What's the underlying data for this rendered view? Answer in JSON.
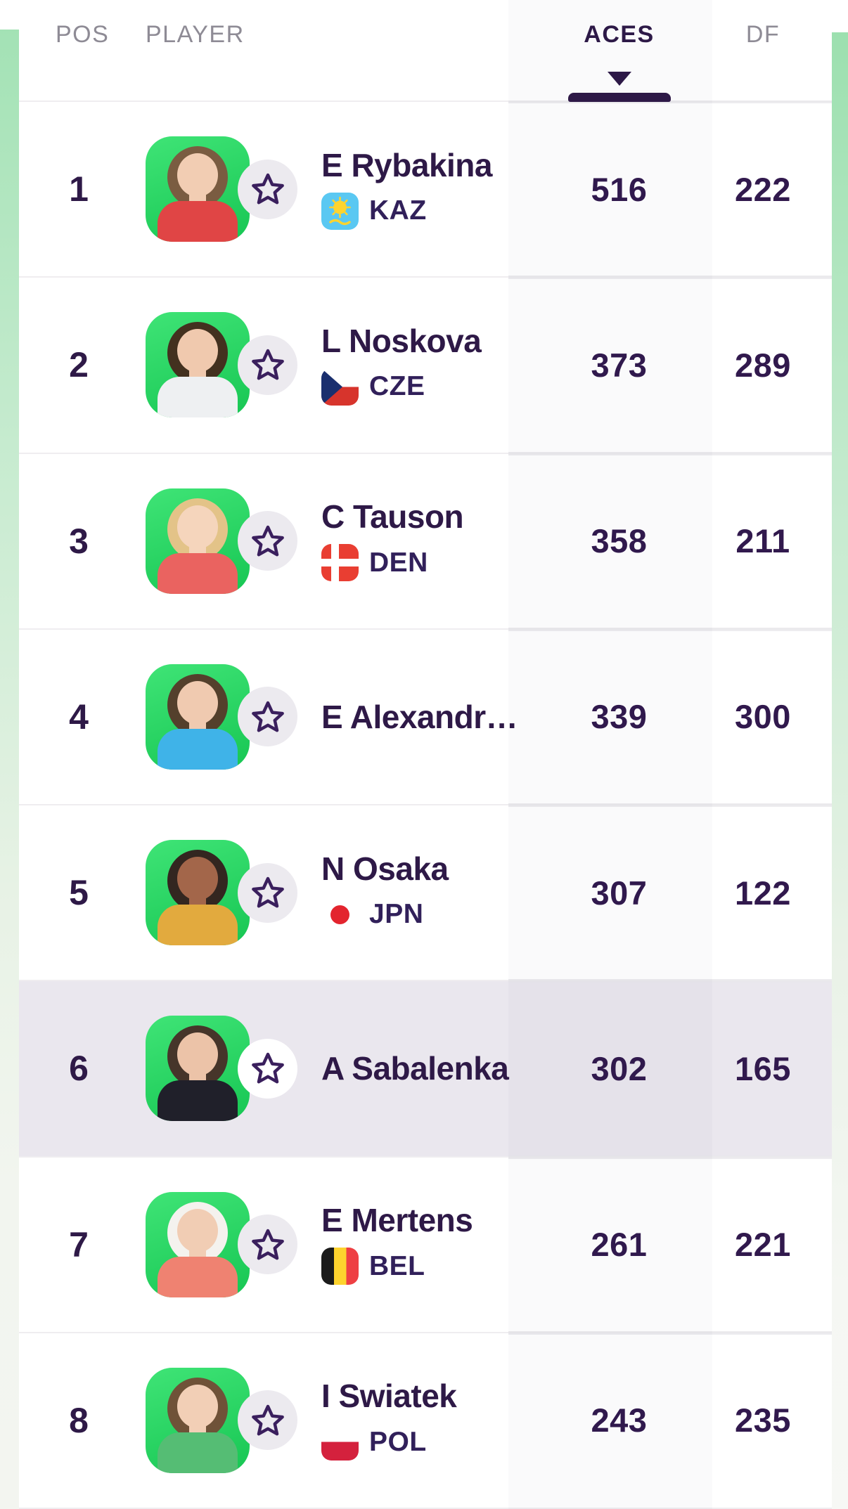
{
  "table": {
    "columns": {
      "pos": "POS",
      "player": "PLAYER",
      "aces": "ACES",
      "df": "DF"
    },
    "sort": {
      "column": "ACES",
      "direction": "desc"
    }
  },
  "colors": {
    "text_primary": "#2e1947",
    "header_muted": "#8e8b95",
    "row_highlight": "#eae7ee",
    "star_circle": "#eceaef",
    "star_circle_highlight": "#ffffff",
    "divider": "#efedf0",
    "avatar_green_top": "#3fe476",
    "avatar_green_bottom": "#17c653",
    "rail_green_top": "#a3e2b5",
    "rail_green_bottom": "#f3f5f0"
  },
  "flags": {
    "KAZ": {
      "bg": "#5ac8f2",
      "emblem": "#ffd42e"
    },
    "CZE": {
      "top": "#ffffff",
      "bottom": "#d7342c",
      "triangle": "#1a2f6e"
    },
    "DEN": {
      "bg": "#e93e32",
      "cross": "#ffffff"
    },
    "JPN": {
      "bg": "#ffffff",
      "disc": "#e3242e"
    },
    "BEL": {
      "left": "#1b1b1b",
      "middle": "#fdd32e",
      "right": "#ee3f43"
    },
    "POL": {
      "top": "#ffffff",
      "bottom": "#d4213d"
    }
  },
  "rows": [
    {
      "pos": "1",
      "name": "E Rybakina",
      "country": "KAZ",
      "aces": "516",
      "df": "222",
      "highlighted": false,
      "avatar": {
        "skin": "#f2cdb3",
        "hair": "#7a5c41",
        "shirt": "#e04545"
      }
    },
    {
      "pos": "2",
      "name": "L Noskova",
      "country": "CZE",
      "aces": "373",
      "df": "289",
      "highlighted": false,
      "avatar": {
        "skin": "#f0c9ae",
        "hair": "#43311f",
        "shirt": "#eef0f2"
      }
    },
    {
      "pos": "3",
      "name": "C Tauson",
      "country": "DEN",
      "aces": "358",
      "df": "211",
      "highlighted": false,
      "avatar": {
        "skin": "#f5d5bc",
        "hair": "#e3c388",
        "shirt": "#ea6360"
      }
    },
    {
      "pos": "4",
      "name": "E Alexandr…",
      "country": null,
      "aces": "339",
      "df": "300",
      "highlighted": false,
      "avatar": {
        "skin": "#f0cab0",
        "hair": "#54402c",
        "shirt": "#3fb3e8"
      }
    },
    {
      "pos": "5",
      "name": "N Osaka",
      "country": "JPN",
      "aces": "307",
      "df": "122",
      "highlighted": false,
      "avatar": {
        "skin": "#a3664a",
        "hair": "#332620",
        "shirt": "#e2aa3e"
      }
    },
    {
      "pos": "6",
      "name": "A Sabalenka",
      "country": null,
      "aces": "302",
      "df": "165",
      "highlighted": true,
      "avatar": {
        "skin": "#ecc3a8",
        "hair": "#46352a",
        "shirt": "#20202a"
      }
    },
    {
      "pos": "7",
      "name": "E Mertens",
      "country": "BEL",
      "aces": "261",
      "df": "221",
      "highlighted": false,
      "avatar": {
        "skin": "#f1cdb4",
        "hair": "#f4f2ee",
        "shirt": "#ef8271"
      }
    },
    {
      "pos": "8",
      "name": "I Swiatek",
      "country": "POL",
      "aces": "243",
      "df": "235",
      "highlighted": false,
      "avatar": {
        "skin": "#f2cfb6",
        "hair": "#6f5238",
        "shirt": "#55bd74"
      }
    }
  ]
}
